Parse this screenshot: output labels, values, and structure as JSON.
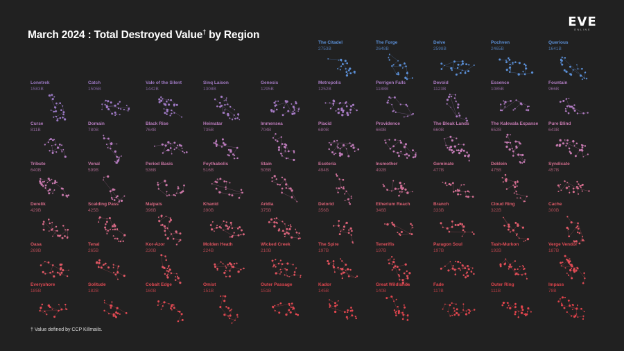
{
  "page": {
    "title_main": "March 2024 : Total Destroyed Value",
    "title_dagger": "†",
    "title_suffix": " by Region",
    "footnote": "† Value defined by CCP Killmails.",
    "logo_word": "EVE",
    "logo_sub": "ONLINE"
  },
  "colors": {
    "background": "#212121",
    "top5": "#5b8fd6",
    "gradient": [
      "#9a79c4",
      "#b37cc2",
      "#c87aaf",
      "#d56c8b",
      "#dd5865",
      "#e04b55",
      "#e0434b"
    ]
  },
  "chart_data": {
    "type": "small-multiples",
    "title": "March 2024 : Total Destroyed Value† by Region",
    "unit": "B",
    "regions": [
      {
        "name": "The Citadel",
        "value": "2753B",
        "value_b": 2753
      },
      {
        "name": "The Forge",
        "value": "2648B",
        "value_b": 2648
      },
      {
        "name": "Delve",
        "value": "2598B",
        "value_b": 2598
      },
      {
        "name": "Pochven",
        "value": "2465B",
        "value_b": 2465
      },
      {
        "name": "Querious",
        "value": "1641B",
        "value_b": 1641
      },
      {
        "name": "Lonetrek",
        "value": "1583B",
        "value_b": 1583
      },
      {
        "name": "Catch",
        "value": "1505B",
        "value_b": 1505
      },
      {
        "name": "Vale of the Silent",
        "value": "1442B",
        "value_b": 1442
      },
      {
        "name": "Sinq Laison",
        "value": "1308B",
        "value_b": 1308
      },
      {
        "name": "Genesis",
        "value": "1295B",
        "value_b": 1295
      },
      {
        "name": "Metropolis",
        "value": "1252B",
        "value_b": 1252
      },
      {
        "name": "Perrigen Falls",
        "value": "1188B",
        "value_b": 1188
      },
      {
        "name": "Devoid",
        "value": "1123B",
        "value_b": 1123
      },
      {
        "name": "Essence",
        "value": "1085B",
        "value_b": 1085
      },
      {
        "name": "Fountain",
        "value": "966B",
        "value_b": 966
      },
      {
        "name": "Curse",
        "value": "811B",
        "value_b": 811
      },
      {
        "name": "Domain",
        "value": "780B",
        "value_b": 780
      },
      {
        "name": "Black Rise",
        "value": "764B",
        "value_b": 764
      },
      {
        "name": "Heimatar",
        "value": "735B",
        "value_b": 735
      },
      {
        "name": "Immensea",
        "value": "704B",
        "value_b": 704
      },
      {
        "name": "Placid",
        "value": "680B",
        "value_b": 680
      },
      {
        "name": "Providence",
        "value": "669B",
        "value_b": 669
      },
      {
        "name": "The Bleak Lands",
        "value": "660B",
        "value_b": 660
      },
      {
        "name": "The Kalevala Expanse",
        "value": "652B",
        "value_b": 652
      },
      {
        "name": "Pure Blind",
        "value": "643B",
        "value_b": 643
      },
      {
        "name": "Tribute",
        "value": "640B",
        "value_b": 640
      },
      {
        "name": "Venal",
        "value": "599B",
        "value_b": 599
      },
      {
        "name": "Period Basis",
        "value": "536B",
        "value_b": 536
      },
      {
        "name": "Feythabolis",
        "value": "516B",
        "value_b": 516
      },
      {
        "name": "Stain",
        "value": "505B",
        "value_b": 505
      },
      {
        "name": "Esoteria",
        "value": "494B",
        "value_b": 494
      },
      {
        "name": "Insmother",
        "value": "492B",
        "value_b": 492
      },
      {
        "name": "Geminate",
        "value": "477B",
        "value_b": 477
      },
      {
        "name": "Deklein",
        "value": "475B",
        "value_b": 475
      },
      {
        "name": "Syndicate",
        "value": "457B",
        "value_b": 457
      },
      {
        "name": "Derelik",
        "value": "429B",
        "value_b": 429
      },
      {
        "name": "Scalding Pass",
        "value": "425B",
        "value_b": 425
      },
      {
        "name": "Malpais",
        "value": "396B",
        "value_b": 396
      },
      {
        "name": "Khanid",
        "value": "390B",
        "value_b": 390
      },
      {
        "name": "Aridia",
        "value": "375B",
        "value_b": 375
      },
      {
        "name": "Detorid",
        "value": "356B",
        "value_b": 356
      },
      {
        "name": "Etherium Reach",
        "value": "346B",
        "value_b": 346
      },
      {
        "name": "Branch",
        "value": "333B",
        "value_b": 333
      },
      {
        "name": "Cloud Ring",
        "value": "322B",
        "value_b": 322
      },
      {
        "name": "Cache",
        "value": "300B",
        "value_b": 300
      },
      {
        "name": "Oasa",
        "value": "269B",
        "value_b": 269
      },
      {
        "name": "Tenal",
        "value": "265B",
        "value_b": 265
      },
      {
        "name": "Kor-Azor",
        "value": "230B",
        "value_b": 230
      },
      {
        "name": "Molden Heath",
        "value": "224B",
        "value_b": 224
      },
      {
        "name": "Wicked Creek",
        "value": "210B",
        "value_b": 210
      },
      {
        "name": "The Spire",
        "value": "197B",
        "value_b": 197
      },
      {
        "name": "Tenerifis",
        "value": "197B",
        "value_b": 197
      },
      {
        "name": "Paragon Soul",
        "value": "197B",
        "value_b": 197
      },
      {
        "name": "Tash-Murkon",
        "value": "192B",
        "value_b": 192
      },
      {
        "name": "Verge Vendor",
        "value": "187B",
        "value_b": 187
      },
      {
        "name": "Everyshore",
        "value": "185B",
        "value_b": 185
      },
      {
        "name": "Solitude",
        "value": "182B",
        "value_b": 182
      },
      {
        "name": "Cobalt Edge",
        "value": "160B",
        "value_b": 160
      },
      {
        "name": "Omist",
        "value": "151B",
        "value_b": 151
      },
      {
        "name": "Outer Passage",
        "value": "151B",
        "value_b": 151
      },
      {
        "name": "Kador",
        "value": "145B",
        "value_b": 145
      },
      {
        "name": "Great Wildlands",
        "value": "140B",
        "value_b": 140
      },
      {
        "name": "Fade",
        "value": "117B",
        "value_b": 117
      },
      {
        "name": "Outer Ring",
        "value": "111B",
        "value_b": 111
      },
      {
        "name": "Impass",
        "value": "78B",
        "value_b": 78
      }
    ]
  }
}
